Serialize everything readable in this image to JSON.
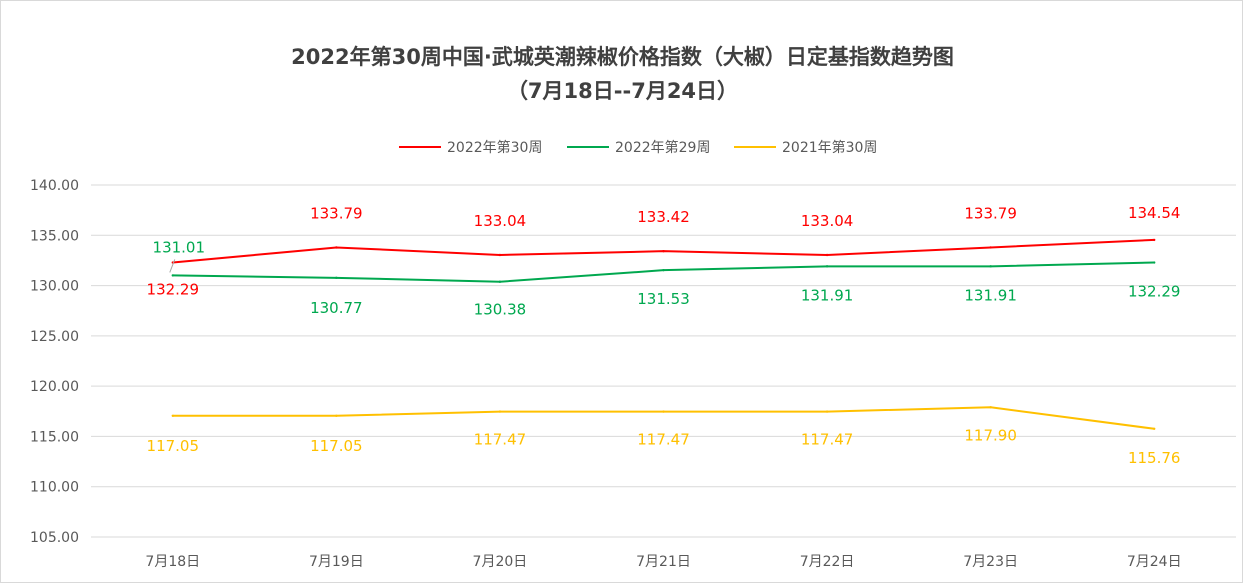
{
  "chart_data": {
    "type": "line",
    "title": "2022年第30周中国·武城英潮辣椒价格指数（大椒）日定基指数趋势图",
    "subtitle": "（7月18日--7月24日）",
    "categories": [
      "7月18日",
      "7月19日",
      "7月20日",
      "7月21日",
      "7月22日",
      "7月23日",
      "7月24日"
    ],
    "ylim": [
      105,
      140
    ],
    "yticks": [
      "105.00",
      "110.00",
      "115.00",
      "120.00",
      "125.00",
      "130.00",
      "135.00",
      "140.00"
    ],
    "grid": true,
    "legend_position": "top",
    "series": [
      {
        "name": "2022年第30周",
        "color": "#ff0000",
        "values": [
          132.29,
          133.79,
          133.04,
          133.42,
          133.04,
          133.79,
          134.54
        ],
        "labels": [
          "132.29",
          "133.79",
          "133.04",
          "133.42",
          "133.04",
          "133.79",
          "134.54"
        ]
      },
      {
        "name": "2022年第29周",
        "color": "#00a84f",
        "values": [
          131.01,
          130.77,
          130.38,
          131.53,
          131.91,
          131.91,
          132.29
        ],
        "labels": [
          "131.01",
          "130.77",
          "130.38",
          "131.53",
          "131.91",
          "131.91",
          "132.29"
        ]
      },
      {
        "name": "2021年第30周",
        "color": "#ffc000",
        "values": [
          117.05,
          117.05,
          117.47,
          117.47,
          117.47,
          117.9,
          115.76
        ],
        "labels": [
          "117.05",
          "117.05",
          "117.47",
          "117.47",
          "117.47",
          "117.90",
          "115.76"
        ]
      }
    ]
  }
}
